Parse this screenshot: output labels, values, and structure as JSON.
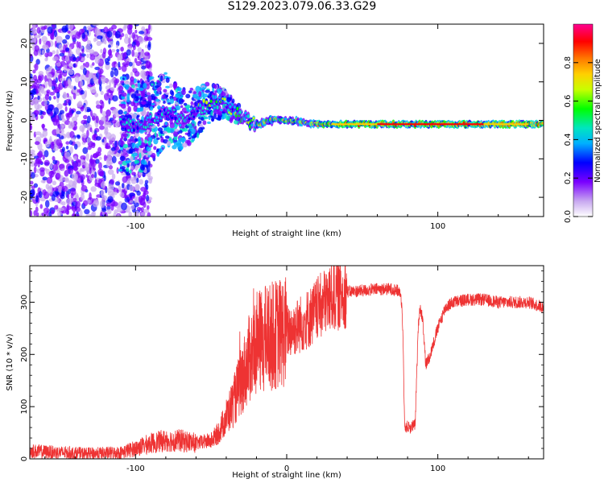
{
  "title": "S129.2023.079.06.33.G29",
  "colors": {
    "snr_line": "#ee3333",
    "cmap": [
      "#ffffff",
      "#c8a8f0",
      "#7a00ff",
      "#0000ff",
      "#00b0ff",
      "#00e5c0",
      "#00ff00",
      "#c8ff00",
      "#ffd000",
      "#ff7a00",
      "#ff0000",
      "#ff0090"
    ]
  },
  "chart_data": [
    {
      "type": "heatmap",
      "xlabel": "Height of straight line (km)",
      "ylabel": "Frequency (Hz)",
      "xlim": [
        -170,
        170
      ],
      "ylim": [
        -25,
        25
      ],
      "x_ticks": [
        -100,
        0,
        100
      ],
      "x_tick_labels": [
        "-100",
        "",
        "100"
      ],
      "y_ticks": [
        -20,
        -10,
        0,
        10,
        20
      ],
      "y_tick_labels": [
        "-20",
        "-10",
        "0",
        "10",
        "20"
      ],
      "colorbar": {
        "label": "Normalized spectral amplitude",
        "range": [
          0,
          1
        ],
        "ticks": [
          0.0,
          0.2,
          0.4,
          0.6,
          0.8
        ],
        "tick_labels": [
          "0.0",
          "0.2",
          "0.4",
          "0.6",
          "0.8"
        ]
      },
      "ridge": [
        {
          "x": -170,
          "y": 0
        },
        {
          "x": -110,
          "y": -1
        },
        {
          "x": -100,
          "y": -2
        },
        {
          "x": -90,
          "y": 0
        },
        {
          "x": -80,
          "y": 3
        },
        {
          "x": -70,
          "y": 0
        },
        {
          "x": -60,
          "y": 2
        },
        {
          "x": -50,
          "y": 5
        },
        {
          "x": -40,
          "y": 4
        },
        {
          "x": -30,
          "y": 1
        },
        {
          "x": -20,
          "y": -1
        },
        {
          "x": -10,
          "y": 0
        },
        {
          "x": 0,
          "y": 0
        },
        {
          "x": 20,
          "y": -1
        },
        {
          "x": 60,
          "y": -1
        },
        {
          "x": 120,
          "y": -1
        },
        {
          "x": 170,
          "y": -1
        }
      ]
    },
    {
      "type": "line",
      "xlabel": "Height of straight line (km)",
      "ylabel": "SNR (10 * v/v)",
      "xlim": [
        -170,
        170
      ],
      "ylim": [
        0,
        370
      ],
      "x_ticks": [
        -100,
        0,
        100
      ],
      "x_tick_labels": [
        "-100",
        "0",
        "100"
      ],
      "y_ticks": [
        0,
        100,
        200,
        300
      ],
      "y_tick_labels": [
        "0",
        "100",
        "200",
        "300"
      ],
      "series": [
        {
          "x": [
            -170,
            -150,
            -130,
            -110,
            -100,
            -90,
            -80,
            -70,
            -60,
            -50,
            -45,
            -40,
            -35,
            -30,
            -25,
            -20,
            -15,
            -10,
            -5,
            0,
            5,
            10,
            15,
            20,
            25,
            30,
            40,
            50,
            60,
            70,
            75,
            76,
            77,
            78,
            80,
            82,
            85,
            87,
            88,
            90,
            92,
            95,
            98,
            100,
            105,
            110,
            120,
            130,
            140,
            150,
            160,
            170
          ],
          "values": [
            15,
            12,
            10,
            12,
            20,
            30,
            35,
            35,
            30,
            35,
            50,
            80,
            110,
            150,
            190,
            220,
            230,
            235,
            240,
            245,
            250,
            260,
            270,
            285,
            300,
            310,
            320,
            322,
            325,
            325,
            320,
            300,
            240,
            60,
            62,
            60,
            65,
            250,
            290,
            270,
            180,
            200,
            230,
            250,
            290,
            300,
            305,
            305,
            300,
            300,
            300,
            290
          ]
        }
      ]
    }
  ]
}
